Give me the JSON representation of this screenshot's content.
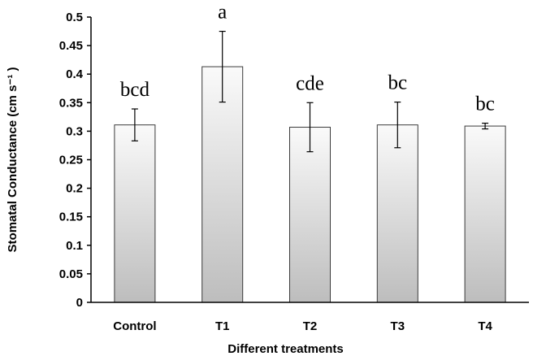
{
  "chart_data": {
    "type": "bar",
    "categories": [
      "Control",
      "T1",
      "T2",
      "T3",
      "T4"
    ],
    "values": [
      0.311,
      0.413,
      0.307,
      0.311,
      0.309
    ],
    "errors": [
      0.028,
      0.062,
      0.043,
      0.04,
      0.005
    ],
    "significance_labels": [
      "bcd",
      "a",
      "cde",
      "bc",
      "bc"
    ],
    "xlabel": "Different treatments",
    "ylabel": "Stomatal Conductance (cm  s⁻¹ )",
    "ylim": [
      0,
      0.5
    ],
    "yticks": [
      "0",
      "0.05",
      "0.1",
      "0.15",
      "0.2",
      "0.25",
      "0.3",
      "0.35",
      "0.4",
      "0.45",
      "0.5"
    ],
    "grid": false,
    "legend": "none",
    "bar_gradient": [
      "#fafafa",
      "#bdbdbd"
    ]
  }
}
